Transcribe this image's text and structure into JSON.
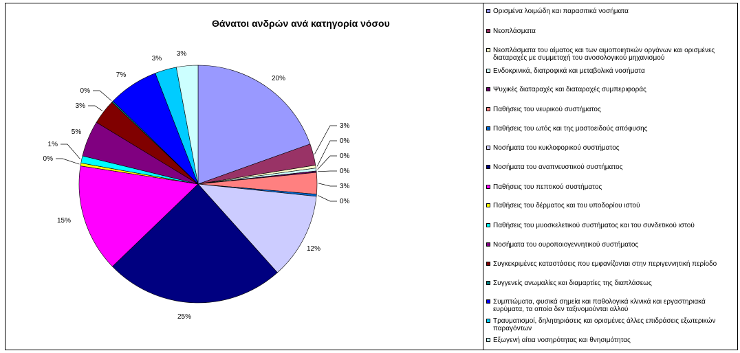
{
  "chart_data": {
    "type": "pie",
    "title": "Θάνατοι ανδρών ανά κατηγορία νόσου",
    "legend_position": "right",
    "slices": [
      {
        "name": "Ορισμένα λοιμώδη και παρασιτικά νοσήματα",
        "value": 20,
        "label": "20%",
        "color": "#9999ff"
      },
      {
        "name": "Νεοπλάσματα",
        "value": 3,
        "label": "3%",
        "color": "#993366"
      },
      {
        "name": "Νεοπλάσματα του αίματος και των αιμοποιητικών οργάνων και ορισμένες διαταραχές με συμμετοχή του ανοσολογικού μηχανισμού",
        "value": 0.4,
        "label": "0%",
        "color": "#ffffcc"
      },
      {
        "name": "Ενδοκρινικά, διατροφικά και μεταβολικά νοσήματα",
        "value": 0.4,
        "label": "0%",
        "color": "#ccffff"
      },
      {
        "name": "Ψυχικές διαταραχές και διαταραχές συμπεριφοράς",
        "value": 0.2,
        "label": "0%",
        "color": "#660066"
      },
      {
        "name": "Παθήσεις του νευρικού συστήματος",
        "value": 3,
        "label": "3%",
        "color": "#ff8080"
      },
      {
        "name": "Παθήσεις του ωτός και της μαστοειδούς απόφυσης",
        "value": 0.3,
        "label": "0%",
        "color": "#0066cc"
      },
      {
        "name": "Νοσήματα του κυκλοφορικού συστήματος",
        "value": 12,
        "label": "12%",
        "color": "#ccccff"
      },
      {
        "name": "Νοσήματα του αναπνευστικού συστήματος",
        "value": 25,
        "label": "25%",
        "color": "#000080"
      },
      {
        "name": "Παθήσεις του πεπτικού συστήματος",
        "value": 15,
        "label": "15%",
        "color": "#ff00ff"
      },
      {
        "name": "Παθήσεις του δέρματος και του υποδορίου ιστού",
        "value": 0.4,
        "label": "0%",
        "color": "#ffff00"
      },
      {
        "name": "Παθήσεις του μυοσκελετικού συστήματος και του συνδετικού ιστού",
        "value": 1,
        "label": "1%",
        "color": "#00ffff"
      },
      {
        "name": "Νοσήματα του ουροποιογεννητικού συστήματος",
        "value": 5,
        "label": "5%",
        "color": "#800080"
      },
      {
        "name": "Συγκεκριμένες καταστάσεις που εμφανίζονται στην περιγεννητική περίοδο",
        "value": 3.5,
        "label": "3%",
        "color": "#800000"
      },
      {
        "name": "Συγγενείς ανωμαλίες και διαμαρτίες της διαπλάσεως",
        "value": 0.2,
        "label": "0%",
        "color": "#008080"
      },
      {
        "name": "Συμπτώματα, φυσικά σημεία και παθολογικά κλινικά και εργαστηριακά ευρύματα, τα οποία δεν ταξινομούνται αλλού",
        "value": 7,
        "label": "7%",
        "color": "#0000ff"
      },
      {
        "name": "Τραυματισμοί, δηλητηριάσεις και ορισμένες άλλες επιδράσεις εξωτερικών παραγόντων",
        "value": 3,
        "label": "3%",
        "color": "#00ccff"
      },
      {
        "name": "Εξωγενή αίτια νοσηρότητας και θνησιμότητας",
        "value": 3,
        "label": "3%",
        "color": "#ccffff"
      }
    ]
  }
}
